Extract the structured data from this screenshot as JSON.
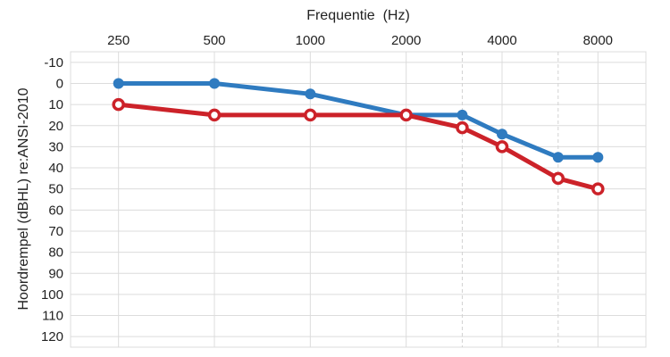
{
  "chart_data": {
    "type": "line",
    "title": "",
    "xlabel": "Frequentie  (Hz)",
    "ylabel": "Hoordrempel (dBHL) re:ANSI-2010",
    "x_axis_position": "top",
    "y_inverted": true,
    "ylim": [
      -15,
      125
    ],
    "yticks": [
      -10,
      0,
      10,
      20,
      30,
      40,
      50,
      60,
      70,
      80,
      90,
      100,
      110,
      120
    ],
    "xticks": [
      "250",
      "500",
      "1000",
      "2000",
      "4000",
      "8000"
    ],
    "x_scale": "log2",
    "x_range_octaves": [
      -0.5,
      5.5
    ],
    "grid": true,
    "legend": "none",
    "series": [
      {
        "color": "#2F7BC0",
        "marker": "filled-circle",
        "points": [
          {
            "x": 250,
            "y": 0
          },
          {
            "x": 500,
            "y": 0
          },
          {
            "x": 1000,
            "y": 5
          },
          {
            "x": 2000,
            "y": 15
          },
          {
            "x": 3000,
            "y": 15
          },
          {
            "x": 4000,
            "y": 24
          },
          {
            "x": 6000,
            "y": 35
          },
          {
            "x": 8000,
            "y": 35
          }
        ]
      },
      {
        "color": "#CC2229",
        "marker": "open-circle",
        "points": [
          {
            "x": 250,
            "y": 10
          },
          {
            "x": 500,
            "y": 15
          },
          {
            "x": 1000,
            "y": 15
          },
          {
            "x": 2000,
            "y": 15
          },
          {
            "x": 3000,
            "y": 21
          },
          {
            "x": 4000,
            "y": 30
          },
          {
            "x": 6000,
            "y": 45
          },
          {
            "x": 8000,
            "y": 50
          }
        ]
      }
    ],
    "colors": {
      "grid": "#DCDCDC",
      "grid_dashed": "#D2D2D2",
      "axis_text": "#222222"
    }
  }
}
